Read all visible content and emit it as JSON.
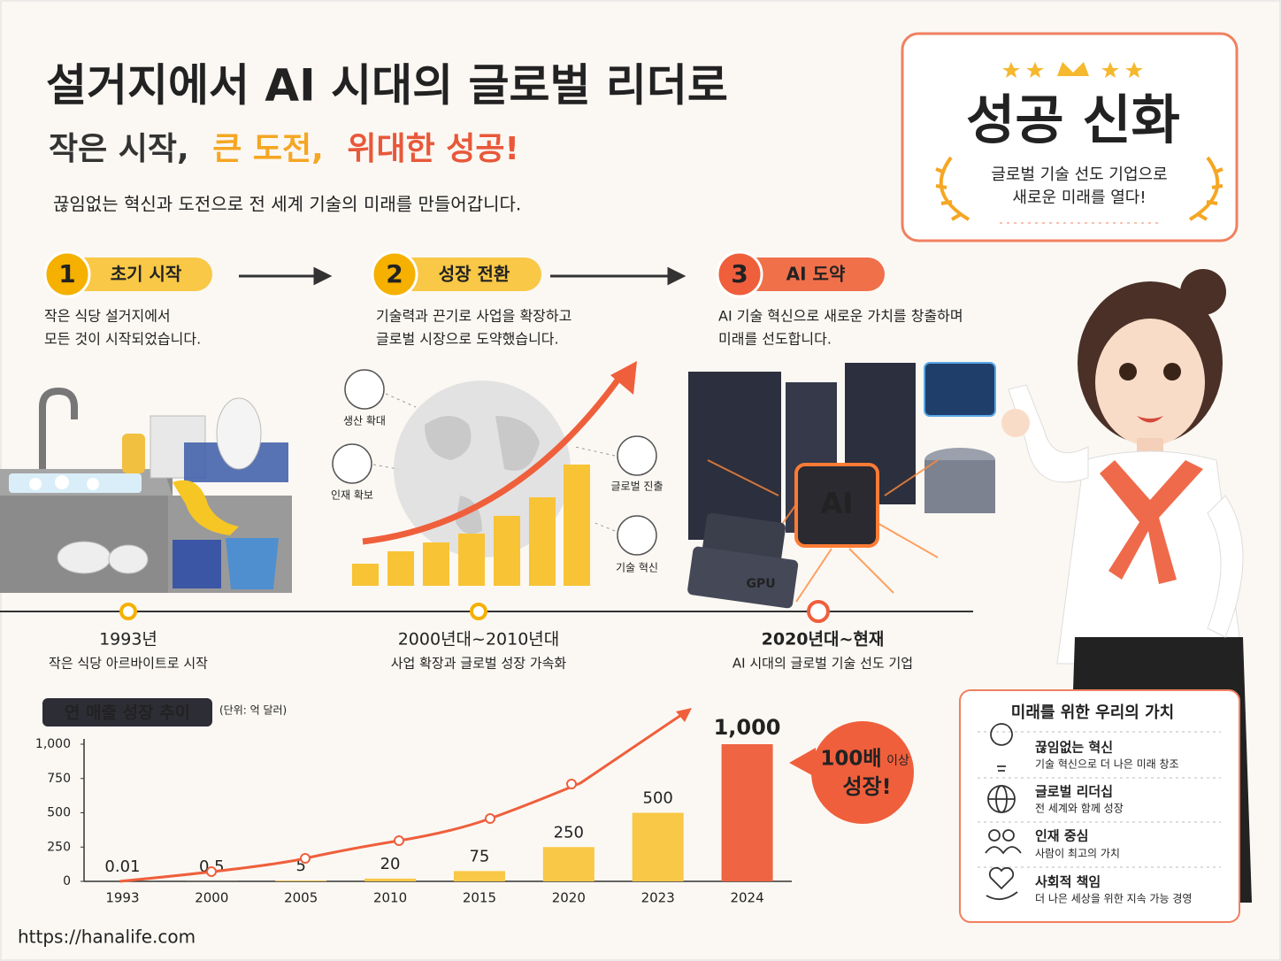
{
  "header": {
    "title": "설거지에서 AI 시대의 글로벌 리더로",
    "subtitle": [
      "작은 시작,",
      "큰 도전,",
      "위대한 성공!"
    ],
    "description": "끊임없는 혁신과 도전으로 전 세계 기술의 미래를 만들어갑니다."
  },
  "badge": {
    "title": "성공 신화",
    "lines": [
      "글로벌 기술 선도 기업으로",
      "새로운 미래를 열다!"
    ]
  },
  "stages": [
    {
      "number": "1",
      "title": "초기 시작",
      "lines": [
        "작은 식당 설거지에서",
        "모든 것이 시작되었습니다."
      ],
      "period": "1993년",
      "caption": "작은 식당 아르바이트로 시작"
    },
    {
      "number": "2",
      "title": "성장 전환",
      "lines": [
        "기술력과 끈기로 사업을 확장하고",
        "글로벌 시장으로 도약했습니다."
      ],
      "period": "2000년대~2010년대",
      "caption": "사업 확장과 글로벌 성장 가속화"
    },
    {
      "number": "3",
      "title": "AI 도약",
      "lines": [
        "AI 기술 혁신으로 새로운 가치를 창출하며",
        "미래를 선도합니다."
      ],
      "period": "2020년대~현재",
      "caption": "AI 시대의 글로벌 기술 선도 기업"
    }
  ],
  "growth_icons": [
    "생산 확대",
    "인재 확보",
    "글로벌 진출",
    "기술 혁신"
  ],
  "chip_labels": [
    "AI",
    "GPU"
  ],
  "chart_data": {
    "type": "bar",
    "title": "연 매출 성장 추이",
    "unit": "(단위: 억 달러)",
    "categories": [
      "1993",
      "2000",
      "2005",
      "2010",
      "2015",
      "2020",
      "2023",
      "2024"
    ],
    "values": [
      0.01,
      0.5,
      5,
      20,
      75,
      250,
      500,
      1000
    ],
    "value_labels": [
      "0.01",
      "0.5",
      "5",
      "20",
      "75",
      "250",
      "500",
      "1,000"
    ],
    "colors": [
      "#f8c846",
      "#f8c846",
      "#f8c846",
      "#f8c846",
      "#f8c846",
      "#f8c846",
      "#f8c846",
      "#ef6442"
    ],
    "ylim": [
      0,
      1000
    ],
    "yticks": [
      0,
      250,
      500,
      750,
      {
        "value": 1000,
        "label": "1,000"
      }
    ],
    "grid": false,
    "callout": [
      "100배",
      "이상",
      "성장!"
    ]
  },
  "values_box": {
    "title": "미래를 위한 우리의 가치",
    "items": [
      {
        "title": "끊임없는 혁신",
        "text": "기술 혁신으로 더 나은 미래 창조"
      },
      {
        "title": "글로벌 리더십",
        "text": "전 세계와 함께 성장"
      },
      {
        "title": "인재 중심",
        "text": "사람이 최고의 가치"
      },
      {
        "title": "사회적 책임",
        "text": "더 나은 세상을 위한 지속 가능 경영"
      }
    ]
  },
  "footer": "https://hanalife.com"
}
